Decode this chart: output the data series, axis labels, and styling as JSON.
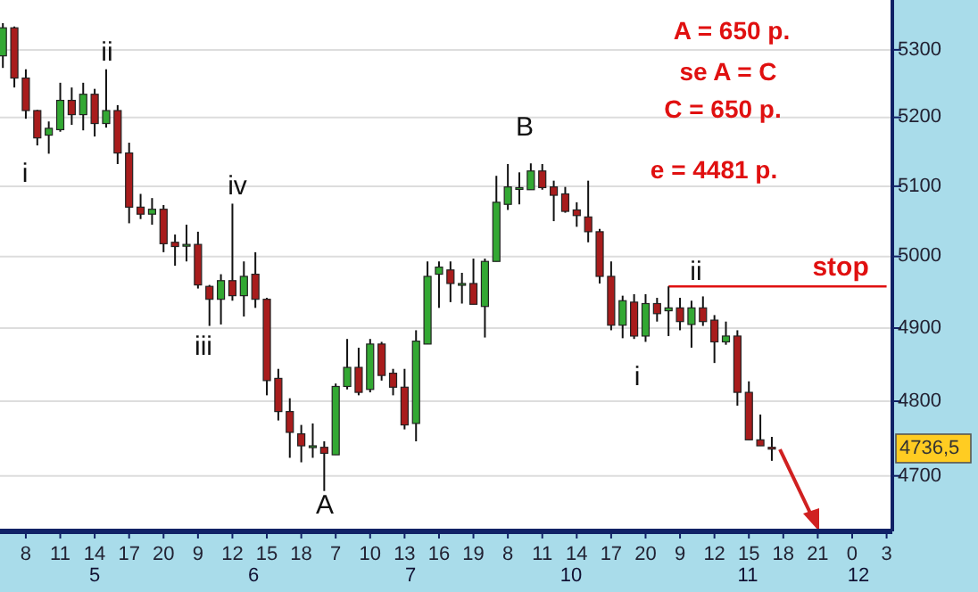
{
  "chart_data": {
    "type": "candlestick",
    "categories": [
      null,
      null,
      "8",
      null,
      null,
      "11",
      null,
      null,
      "14",
      null,
      null,
      "17",
      null,
      null,
      "20",
      null,
      null,
      "9",
      null,
      null,
      "12",
      null,
      null,
      "15",
      null,
      null,
      "18",
      null,
      null,
      "7",
      null,
      null,
      "10",
      null,
      null,
      "13",
      null,
      null,
      "16",
      null,
      null,
      "19",
      null,
      null,
      "8",
      null,
      null,
      "11",
      null,
      null,
      "14",
      null,
      null,
      "17",
      null,
      null,
      "20",
      null,
      null,
      "9",
      null,
      null,
      "12",
      null,
      null,
      "15",
      null,
      null,
      "18",
      null,
      null,
      "21",
      null,
      null,
      "0",
      null,
      null,
      "3"
    ],
    "ohlc": [
      [
        5291,
        5340,
        5273,
        5333
      ],
      [
        5333,
        5335,
        5244,
        5258
      ],
      [
        5258,
        5271,
        5198,
        5210
      ],
      [
        5210,
        5211,
        5159,
        5170
      ],
      [
        5174,
        5194,
        5147,
        5184
      ],
      [
        5182,
        5251,
        5179,
        5225
      ],
      [
        5225,
        5244,
        5189,
        5204
      ],
      [
        5204,
        5251,
        5181,
        5234
      ],
      [
        5234,
        5242,
        5172,
        5191
      ],
      [
        5191,
        5271,
        5185,
        5210
      ],
      [
        5210,
        5218,
        5132,
        5148
      ],
      [
        5148,
        5163,
        5047,
        5070
      ],
      [
        5070,
        5089,
        5053,
        5060
      ],
      [
        5060,
        5083,
        5045,
        5067
      ],
      [
        5067,
        5073,
        5006,
        5018
      ],
      [
        5020,
        5031,
        4987,
        5014
      ],
      [
        5017,
        5045,
        4993,
        5017
      ],
      [
        5017,
        5035,
        4955,
        4960
      ],
      [
        4958,
        4960,
        4903,
        4940
      ],
      [
        4940,
        4975,
        4905,
        4966
      ],
      [
        4966,
        5075,
        4938,
        4945
      ],
      [
        4945,
        4993,
        4916,
        4972
      ],
      [
        4975,
        5006,
        4928,
        4940
      ],
      [
        4940,
        4942,
        4808,
        4828
      ],
      [
        4831,
        4844,
        4774,
        4786
      ],
      [
        4786,
        4804,
        4724,
        4758
      ],
      [
        4756,
        4768,
        4718,
        4740
      ],
      [
        4740,
        4770,
        4724,
        4740
      ],
      [
        4738,
        4746,
        4680,
        4730
      ],
      [
        4728,
        4824,
        4728,
        4820
      ],
      [
        4820,
        4885,
        4816,
        4846
      ],
      [
        4846,
        4873,
        4808,
        4812
      ],
      [
        4816,
        4885,
        4812,
        4878
      ],
      [
        4878,
        4881,
        4828,
        4835
      ],
      [
        4838,
        4844,
        4808,
        4819
      ],
      [
        4819,
        4844,
        4762,
        4768
      ],
      [
        4770,
        4897,
        4746,
        4882
      ],
      [
        4878,
        4993,
        4878,
        4972
      ],
      [
        4975,
        4993,
        4928,
        4985
      ],
      [
        4981,
        4993,
        4936,
        4962
      ],
      [
        4962,
        4977,
        4934,
        4962
      ],
      [
        4962,
        4997,
        4933,
        4933
      ],
      [
        4930,
        4997,
        4887,
        4993
      ],
      [
        4993,
        5115,
        4993,
        5077
      ],
      [
        5074,
        5132,
        5066,
        5099
      ],
      [
        5098,
        5120,
        5074,
        5098
      ],
      [
        5095,
        5133,
        5095,
        5122
      ],
      [
        5122,
        5132,
        5095,
        5098
      ],
      [
        5099,
        5108,
        5050,
        5087
      ],
      [
        5089,
        5099,
        5062,
        5064
      ],
      [
        5066,
        5077,
        5042,
        5058
      ],
      [
        5056,
        5108,
        5020,
        5035
      ],
      [
        5035,
        5039,
        4962,
        4972
      ],
      [
        4972,
        4993,
        4897,
        4904
      ],
      [
        4904,
        4945,
        4886,
        4938
      ],
      [
        4936,
        4947,
        4885,
        4889
      ],
      [
        4889,
        4947,
        4881,
        4934
      ],
      [
        4934,
        4942,
        4909,
        4920
      ],
      [
        4924,
        4958,
        4889,
        4928
      ],
      [
        4928,
        4942,
        4897,
        4909
      ],
      [
        4905,
        4938,
        4873,
        4928
      ],
      [
        4928,
        4944,
        4903,
        4909
      ],
      [
        4911,
        4918,
        4852,
        4881
      ],
      [
        4881,
        4909,
        4877,
        4889
      ],
      [
        4889,
        4897,
        4794,
        4812
      ],
      [
        4812,
        4827,
        4748,
        4748
      ],
      [
        4748,
        4782,
        4740,
        4740
      ],
      [
        4738,
        4752,
        4720,
        4736.5
      ],
      null,
      null,
      null,
      null,
      null,
      null,
      null,
      null,
      null,
      null
    ],
    "colors": [
      "#33a833",
      "#a81c1c",
      "#a81c1c",
      "#a81c1c",
      "#33a833",
      "#33a833",
      "#a81c1c",
      "#33a833",
      "#a81c1c",
      "#33a833",
      "#a81c1c",
      "#a81c1c",
      "#a81c1c",
      "#33a833",
      "#a81c1c",
      "#a81c1c",
      "#33a833",
      "#a81c1c",
      "#a81c1c",
      "#33a833",
      "#a81c1c",
      "#33a833",
      "#a81c1c",
      "#a81c1c",
      "#a81c1c",
      "#a81c1c",
      "#a81c1c",
      "#33a833",
      "#a81c1c",
      "#33a833",
      "#33a833",
      "#a81c1c",
      "#33a833",
      "#a81c1c",
      "#a81c1c",
      "#a81c1c",
      "#33a833",
      "#33a833",
      "#33a833",
      "#a81c1c",
      "#33a833",
      "#a81c1c",
      "#33a833",
      "#33a833",
      "#33a833",
      "#33a833",
      "#33a833",
      "#a81c1c",
      "#a81c1c",
      "#a81c1c",
      "#a81c1c",
      "#a81c1c",
      "#a81c1c",
      "#a81c1c",
      "#33a833",
      "#a81c1c",
      "#33a833",
      "#a81c1c",
      "#33a833",
      "#a81c1c",
      "#33a833",
      "#a81c1c",
      "#a81c1c",
      "#33a833",
      "#a81c1c",
      "#a81c1c",
      "#a81c1c",
      "#a81c1c",
      null,
      null,
      null,
      null,
      null,
      null,
      null,
      null,
      null,
      null
    ],
    "series": [
      {
        "type": "line",
        "name": "stop",
        "color": "#e01010",
        "values": [
          null,
          null,
          null,
          null,
          null,
          null,
          null,
          null,
          null,
          null,
          null,
          null,
          null,
          null,
          null,
          null,
          null,
          null,
          null,
          null,
          null,
          null,
          null,
          null,
          null,
          null,
          null,
          null,
          null,
          null,
          null,
          null,
          null,
          null,
          null,
          null,
          null,
          null,
          null,
          null,
          null,
          null,
          null,
          null,
          null,
          null,
          null,
          null,
          null,
          null,
          null,
          null,
          null,
          null,
          null,
          null,
          null,
          null,
          4958,
          4958,
          4958,
          4958,
          4958,
          4958,
          4958,
          4958,
          4958,
          4958,
          4958,
          4958,
          4958,
          4958,
          4958,
          4958,
          4958,
          4958,
          4958,
          4958
        ]
      }
    ],
    "log": true,
    "ylim": [
      4627,
      5375
    ],
    "yticks": [
      4700,
      4800,
      4900,
      5000,
      5100,
      5200,
      5300
    ],
    "grid": "y",
    "annotations": [
      "i",
      "ii",
      "iii",
      "iv",
      "A",
      "B",
      "i",
      "ii",
      "5",
      "6",
      "7",
      "10",
      "11",
      "12",
      "A = 650 p.",
      "se A = C",
      "C = 650 p.",
      "e = 4481 p.",
      "4736,5"
    ]
  }
}
